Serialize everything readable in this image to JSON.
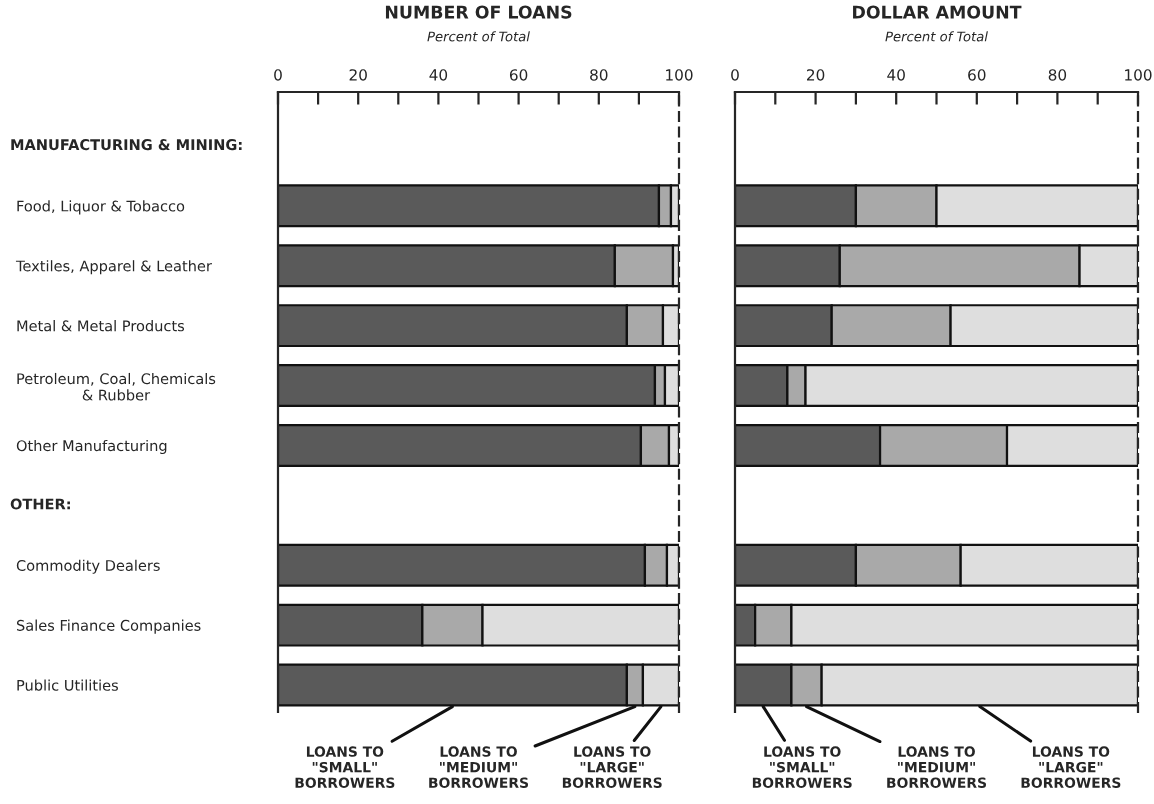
{
  "chart_data": [
    {
      "type": "bar",
      "orientation": "horizontal",
      "stacked": true,
      "title": "NUMBER OF LOANS",
      "xlabel": "Percent of Total",
      "categories": [
        null,
        "Food, Liquor & Tobacco",
        "Textiles, Apparel & Leather",
        "Metal & Metal Products",
        "Petroleum, Coal, Chemicals\n& Rubber",
        "Other Manufacturing",
        null,
        "Commodity Dealers",
        "Sales Finance Companies",
        "Public Utilities"
      ],
      "annotations": [
        "MANUFACTURING & MINING:",
        "OTHER:"
      ],
      "series": [
        {
          "name": "LOANS TO\n\"SMALL\"\nBORROWERS",
          "color": "#5a5a5a",
          "values": [
            null,
            95,
            84,
            87,
            94,
            90.5,
            null,
            91.5,
            36,
            87
          ]
        },
        {
          "name": "LOANS TO\n\"MEDIUM\"\nBORROWERS",
          "color": "#a9a9a9",
          "values": [
            null,
            3,
            14.5,
            9,
            2.5,
            7,
            null,
            5.5,
            15,
            4
          ]
        },
        {
          "name": "LOANS TO\n\"LARGE\"\nBORROWERS",
          "color": "#dedede",
          "values": [
            null,
            2,
            1.5,
            4,
            3.5,
            2.5,
            null,
            3,
            49,
            9
          ]
        }
      ],
      "xlim": [
        0,
        100
      ],
      "xticks": [
        0,
        {
          "value": 10,
          "label": null
        },
        20,
        {
          "value": 30,
          "label": null
        },
        40,
        {
          "value": 50,
          "label": null
        },
        60,
        {
          "value": 70,
          "label": null
        },
        80,
        {
          "value": 90,
          "label": null
        },
        100
      ],
      "legend": "bottom"
    },
    {
      "type": "bar",
      "orientation": "horizontal",
      "stacked": true,
      "title": "DOLLAR AMOUNT",
      "xlabel": "Percent of Total",
      "categories": [
        null,
        null,
        null,
        null,
        null,
        null,
        null,
        null,
        null,
        null
      ],
      "series": [
        {
          "name": "LOANS TO\n\"SMALL\"\nBORROWERS",
          "color": "#5a5a5a",
          "values": [
            null,
            30,
            26,
            24,
            13,
            36,
            null,
            30,
            5,
            14
          ]
        },
        {
          "name": "LOANS TO\n\"MEDIUM\"\nBORROWERS",
          "color": "#a9a9a9",
          "values": [
            null,
            20,
            59.5,
            29.5,
            4.5,
            31.5,
            null,
            26,
            9,
            7.5
          ]
        },
        {
          "name": "LOANS TO\n\"LARGE\"\nBORROWERS",
          "color": "#dedede",
          "values": [
            null,
            50,
            14.5,
            46.5,
            82.5,
            32.5,
            null,
            44,
            86,
            78.5
          ]
        }
      ],
      "xlim": [
        0,
        100
      ],
      "xticks": [
        0,
        {
          "value": 10,
          "label": null
        },
        20,
        {
          "value": 30,
          "label": null
        },
        40,
        {
          "value": 50,
          "label": null
        },
        60,
        {
          "value": 70,
          "label": null
        },
        80,
        {
          "value": 90,
          "label": null
        },
        100
      ],
      "tick_labels": "x",
      "legend": "bottom"
    }
  ]
}
